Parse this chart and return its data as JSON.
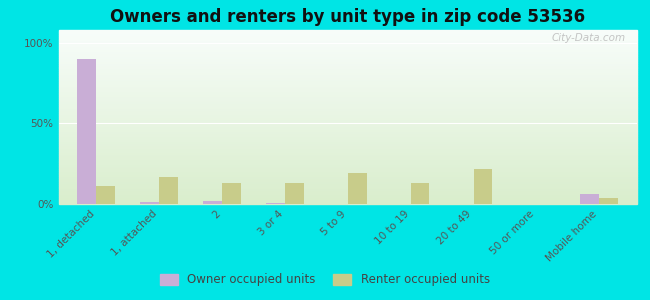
{
  "title": "Owners and renters by unit type in zip code 53536",
  "categories": [
    "1, detached",
    "1, attached",
    "2",
    "3 or 4",
    "5 to 9",
    "10 to 19",
    "20 to 49",
    "50 or more",
    "Mobile home"
  ],
  "owner_values": [
    90,
    1,
    2,
    0.5,
    0,
    0,
    0,
    0,
    6
  ],
  "renter_values": [
    11,
    17,
    13,
    13,
    19,
    13,
    22,
    0,
    4
  ],
  "owner_color": "#c9aed6",
  "renter_color": "#c8cc8a",
  "bg_color_top": "#d8eecc",
  "bg_color_bottom": "#f0f8e8",
  "outer_bg": "#00e5e5",
  "yticks": [
    0,
    50,
    100
  ],
  "ytick_labels": [
    "0%",
    "50%",
    "100%"
  ],
  "ylim": [
    0,
    108
  ],
  "bar_width": 0.3,
  "title_fontsize": 12,
  "tick_fontsize": 7.5,
  "legend_fontsize": 8.5,
  "watermark": "City-Data.com"
}
